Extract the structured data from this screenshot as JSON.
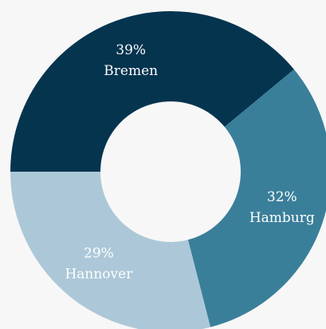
{
  "chart_data": {
    "type": "donut",
    "categories": [
      "Bremen",
      "Hamburg",
      "Hannover"
    ],
    "values": [
      39,
      32,
      29
    ],
    "value_labels": [
      "39%",
      "32%",
      "29%"
    ],
    "colors": [
      "#05344f",
      "#3a7f9a",
      "#acc8d8"
    ]
  }
}
